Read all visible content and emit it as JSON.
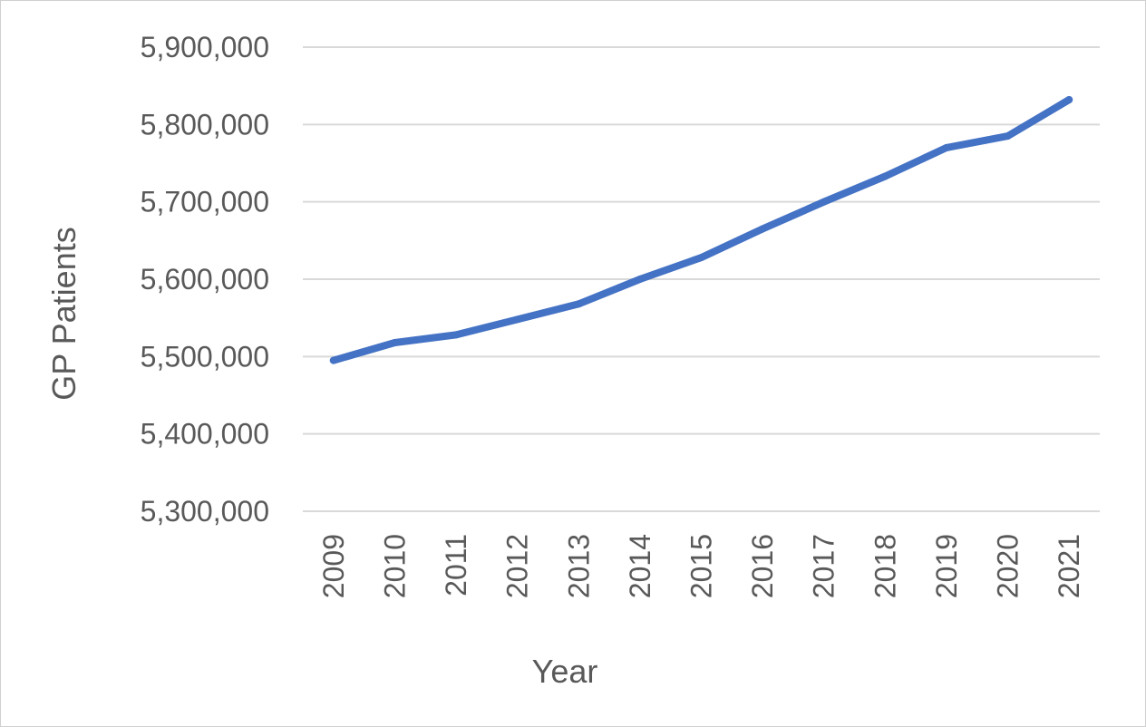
{
  "chart_data": {
    "type": "line",
    "title": "",
    "xlabel": "Year",
    "ylabel": "GP Patients",
    "categories": [
      "2009",
      "2010",
      "2011",
      "2012",
      "2013",
      "2014",
      "2015",
      "2016",
      "2017",
      "2018",
      "2019",
      "2020",
      "2021"
    ],
    "series": [
      {
        "values": [
          5495000,
          5518000,
          5528000,
          5548000,
          5568000,
          5600000,
          5628000,
          5665000,
          5700000,
          5733000,
          5770000,
          5785000,
          5832000
        ],
        "color": "#4472C4"
      }
    ],
    "ylim": [
      5300000,
      5900000
    ],
    "yticks": [
      5300000,
      5400000,
      5500000,
      5600000,
      5700000,
      5800000,
      5900000
    ],
    "ytick_labels": [
      "5,300,000",
      "5,400,000",
      "5,500,000",
      "5,600,000",
      "5,700,000",
      "5,800,000",
      "5,900,000"
    ],
    "grid": true,
    "legend": "none",
    "x_tick_rotation": "vertical"
  }
}
